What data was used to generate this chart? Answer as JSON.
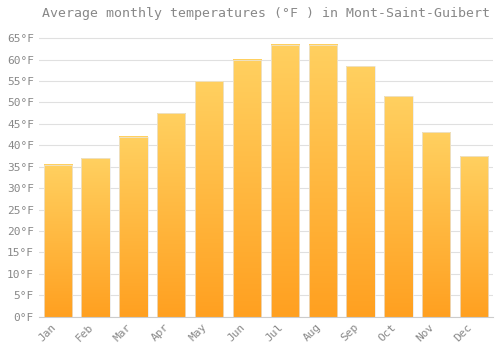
{
  "title": "Average monthly temperatures (°F ) in Mont-Saint-Guibert",
  "months": [
    "Jan",
    "Feb",
    "Mar",
    "Apr",
    "May",
    "Jun",
    "Jul",
    "Aug",
    "Sep",
    "Oct",
    "Nov",
    "Dec"
  ],
  "values": [
    35.5,
    37,
    42,
    47.5,
    55,
    60,
    63.5,
    63.5,
    58.5,
    51.5,
    43,
    37.5
  ],
  "bar_color_top": "#FFD060",
  "bar_color_bottom": "#FFA020",
  "bar_edge_color": "#E8E8E8",
  "background_color": "#FFFFFF",
  "grid_color": "#E0E0E0",
  "text_color": "#888888",
  "ylim": [
    0,
    68
  ],
  "yticks": [
    0,
    5,
    10,
    15,
    20,
    25,
    30,
    35,
    40,
    45,
    50,
    55,
    60,
    65
  ],
  "title_fontsize": 9.5,
  "tick_fontsize": 8
}
